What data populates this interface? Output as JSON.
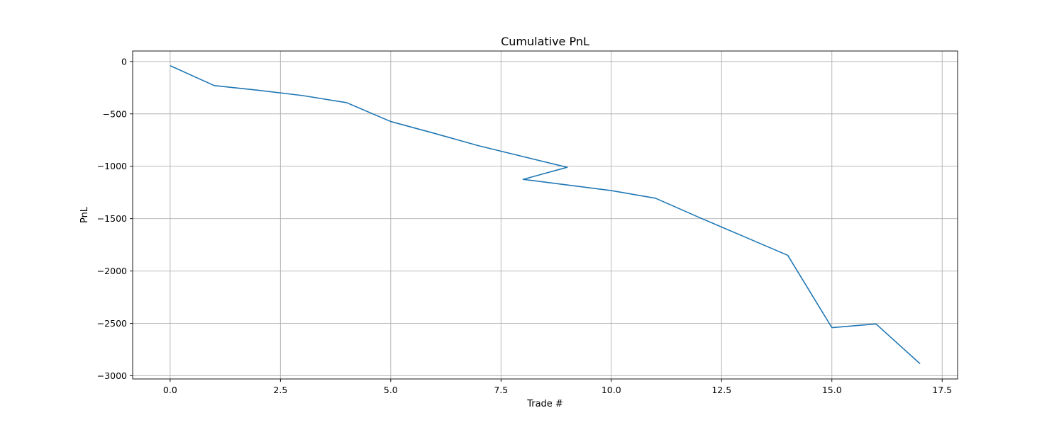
{
  "chart_data": {
    "type": "line",
    "title": "Cumulative PnL",
    "xlabel": "Trade #",
    "ylabel": "PnL",
    "xlim": [
      -0.85,
      17.85
    ],
    "ylim": [
      -3030,
      100
    ],
    "grid": true,
    "x_ticks": [
      0,
      2.5,
      5,
      7.5,
      10,
      12.5,
      15,
      17.5
    ],
    "x_tick_labels": [
      "0.0",
      "2.5",
      "5.0",
      "7.5",
      "10.0",
      "12.5",
      "15.0",
      "17.5"
    ],
    "y_ticks": [
      0,
      -500,
      -1000,
      -1500,
      -2000,
      -2500,
      -3000
    ],
    "y_tick_labels": [
      "0",
      "−500",
      "−1000",
      "−1500",
      "−2000",
      "−2500",
      "−3000"
    ],
    "series": [
      {
        "color": "#1f77b4",
        "x": [
          0,
          1,
          2,
          3,
          4,
          5,
          6,
          7,
          9,
          8,
          10,
          11,
          12,
          13,
          14,
          15,
          16,
          17
        ],
        "y": [
          -40,
          -230,
          -275,
          -325,
          -393,
          -573,
          -687,
          -805,
          -1010,
          -1125,
          -1232,
          -1305,
          -1490,
          -1670,
          -1850,
          -2540,
          -2505,
          -2885
        ]
      }
    ]
  }
}
